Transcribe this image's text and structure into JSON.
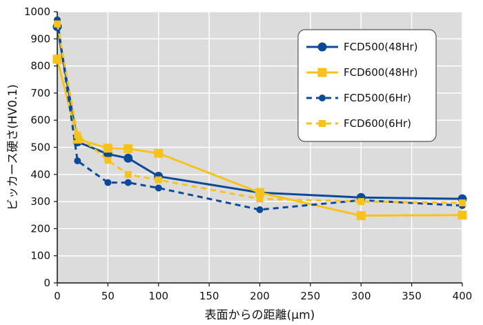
{
  "chart_data": {
    "type": "line",
    "title": "",
    "xlabel": "表面からの距離(μm)",
    "ylabel": "ビッカース硬さ(HV0.1)",
    "xlim": [
      0,
      400
    ],
    "ylim": [
      0,
      1000
    ],
    "xticks": [
      0,
      50,
      100,
      150,
      200,
      250,
      300,
      350,
      400
    ],
    "yticks": [
      0,
      100,
      200,
      300,
      400,
      500,
      600,
      700,
      800,
      900,
      1000
    ],
    "grid": true,
    "legend_position": "top-right",
    "colors": {
      "blue": "#0c4a99",
      "yellow": "#f7c21a",
      "plot_bg": "#dcdcdc",
      "grid": "#ffffff"
    },
    "series": [
      {
        "name": "FCD500(48Hr)",
        "color": "#0c4a99",
        "line": "solid",
        "marker": "circle",
        "x": [
          0,
          20,
          50,
          70,
          100,
          200,
          300,
          400
        ],
        "y": [
          945,
          520,
          475,
          460,
          393,
          333,
          315,
          310
        ]
      },
      {
        "name": "FCD600(48Hr)",
        "color": "#f7c21a",
        "line": "solid",
        "marker": "square",
        "x": [
          0,
          20,
          50,
          70,
          100,
          200,
          300,
          400
        ],
        "y": [
          825,
          530,
          497,
          495,
          478,
          333,
          248,
          250
        ]
      },
      {
        "name": "FCD500(6Hr)",
        "color": "#0c4a99",
        "line": "dashed",
        "marker": "circle",
        "x": [
          0,
          20,
          50,
          70,
          100,
          200,
          300,
          400
        ],
        "y": [
          970,
          450,
          370,
          370,
          350,
          270,
          305,
          285
        ]
      },
      {
        "name": "FCD600(6Hr)",
        "color": "#f7c21a",
        "line": "dashed",
        "marker": "square",
        "x": [
          0,
          20,
          50,
          70,
          100,
          200,
          300,
          400
        ],
        "y": [
          955,
          545,
          452,
          400,
          380,
          310,
          300,
          295
        ]
      }
    ]
  }
}
